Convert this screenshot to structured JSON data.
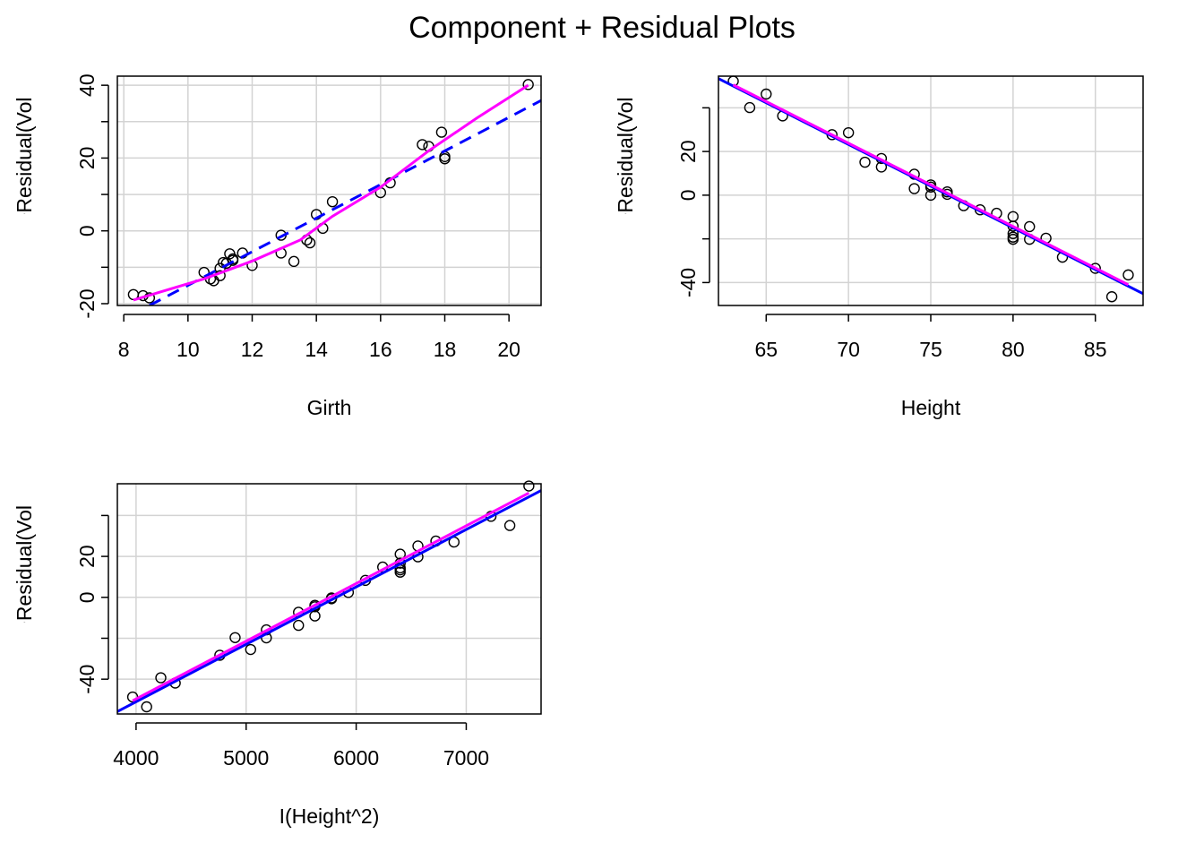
{
  "figure": {
    "title": "Component + Residual Plots"
  },
  "colors": {
    "fit_line": "#0000FF",
    "smooth_line": "#FF00FF",
    "grid": "#D3D3D3",
    "points": "#000000"
  },
  "chart_data": [
    {
      "type": "scatter",
      "xlabel": "Girth",
      "ylabel": "Component+Residual(Volume)",
      "xlim": [
        7.8,
        21.0
      ],
      "ylim": [
        -20.5,
        42.5
      ],
      "xticks": [
        8,
        10,
        12,
        14,
        16,
        18,
        20
      ],
      "yticks": [
        -20,
        -10,
        0,
        10,
        20,
        30,
        40
      ],
      "ytick_labels": [
        "-20",
        "",
        "0",
        "",
        "20",
        "",
        "40"
      ],
      "grid": true,
      "points": [
        [
          8.3,
          -17.5
        ],
        [
          8.6,
          -17.8
        ],
        [
          8.8,
          -18.4
        ],
        [
          10.5,
          -11.4
        ],
        [
          10.7,
          -13.2
        ],
        [
          10.8,
          -13.7
        ],
        [
          11.0,
          -10.3
        ],
        [
          11.0,
          -12.3
        ],
        [
          11.1,
          -8.7
        ],
        [
          11.2,
          -8.9
        ],
        [
          11.3,
          -6.3
        ],
        [
          11.4,
          -7.7
        ],
        [
          11.4,
          -8.1
        ],
        [
          11.7,
          -6.1
        ],
        [
          12.0,
          -9.5
        ],
        [
          12.9,
          -1.2
        ],
        [
          12.9,
          -6.1
        ],
        [
          13.3,
          -8.4
        ],
        [
          13.7,
          -2.5
        ],
        [
          13.8,
          -3.3
        ],
        [
          14.0,
          4.5
        ],
        [
          14.2,
          0.7
        ],
        [
          14.5,
          8.0
        ],
        [
          16.0,
          10.5
        ],
        [
          16.3,
          13.2
        ],
        [
          17.3,
          23.7
        ],
        [
          17.5,
          23.2
        ],
        [
          17.9,
          27.1
        ],
        [
          18.0,
          19.8
        ],
        [
          18.0,
          20.4
        ],
        [
          20.6,
          40.2
        ]
      ],
      "fit_line": {
        "style": "dashed",
        "x": [
          8.8,
          21.0
        ],
        "y": [
          -20.5,
          35.8
        ]
      },
      "smooth_line": {
        "x": [
          8.3,
          10.5,
          12.0,
          13.5,
          14.5,
          16.0,
          17.5,
          19.0,
          20.6
        ],
        "y": [
          -19.0,
          -13.2,
          -8.3,
          -2.5,
          4.0,
          12.0,
          22.0,
          31.0,
          40.0
        ]
      }
    },
    {
      "type": "scatter",
      "xlabel": "Height",
      "ylabel": "Component+Residual(Volume)",
      "xlim": [
        62.1,
        87.9
      ],
      "ylim": [
        -50.5,
        54.5
      ],
      "xticks": [
        65,
        70,
        75,
        80,
        85
      ],
      "yticks": [
        -40,
        -20,
        0,
        20,
        40
      ],
      "ytick_labels": [
        "-40",
        "",
        "0",
        "20",
        ""
      ],
      "grid": true,
      "points": [
        [
          63,
          52.2
        ],
        [
          64,
          40.1
        ],
        [
          65,
          46.3
        ],
        [
          66,
          36.3
        ],
        [
          69,
          27.7
        ],
        [
          70,
          28.6
        ],
        [
          71,
          15.1
        ],
        [
          72,
          16.8
        ],
        [
          72,
          12.9
        ],
        [
          74,
          9.6
        ],
        [
          74,
          3.0
        ],
        [
          75,
          4.7
        ],
        [
          75,
          3.7
        ],
        [
          75,
          0.0
        ],
        [
          76,
          1.5
        ],
        [
          76,
          0.4
        ],
        [
          77,
          -4.8
        ],
        [
          78,
          -6.7
        ],
        [
          79,
          -8.3
        ],
        [
          80,
          -9.8
        ],
        [
          80,
          -14.2
        ],
        [
          80,
          -17.6
        ],
        [
          80,
          -19.2
        ],
        [
          80,
          -20.2
        ],
        [
          81,
          -14.4
        ],
        [
          81,
          -20.2
        ],
        [
          82,
          -19.7
        ],
        [
          83,
          -28.4
        ],
        [
          85,
          -33.5
        ],
        [
          86,
          -46.5
        ],
        [
          87,
          -36.5
        ]
      ],
      "fit_line": {
        "style": "solid",
        "x": [
          62.1,
          87.9
        ],
        "y": [
          53.4,
          -45.1
        ]
      },
      "smooth_line": {
        "x": [
          63,
          87
        ],
        "y": [
          50.5,
          -41.0
        ]
      }
    },
    {
      "type": "scatter",
      "xlabel": "I(Height^2)",
      "ylabel": "Component+Residual(Volume)",
      "xlim": [
        3830,
        7680
      ],
      "ylim": [
        -57.0,
        55.5
      ],
      "xticks": [
        4000,
        5000,
        6000,
        7000
      ],
      "yticks": [
        -40,
        -20,
        0,
        20,
        40
      ],
      "ytick_labels": [
        "-40",
        "",
        "0",
        "20",
        ""
      ],
      "grid": true,
      "points": [
        [
          3969,
          -48.7
        ],
        [
          4096,
          -53.5
        ],
        [
          4225,
          -39.3
        ],
        [
          4356,
          -41.9
        ],
        [
          4761,
          -28.3
        ],
        [
          4900,
          -19.7
        ],
        [
          5041,
          -25.5
        ],
        [
          5184,
          -15.9
        ],
        [
          5184,
          -19.8
        ],
        [
          5476,
          -7.3
        ],
        [
          5476,
          -13.7
        ],
        [
          5625,
          -3.9
        ],
        [
          5625,
          -4.6
        ],
        [
          5625,
          -9.1
        ],
        [
          5776,
          -0.3
        ],
        [
          5776,
          -0.7
        ],
        [
          5929,
          2.4
        ],
        [
          6084,
          8.3
        ],
        [
          6241,
          14.8
        ],
        [
          6400,
          21.1
        ],
        [
          6400,
          16.7
        ],
        [
          6400,
          14.4
        ],
        [
          6400,
          13.4
        ],
        [
          6400,
          12.3
        ],
        [
          6561,
          25.1
        ],
        [
          6561,
          19.8
        ],
        [
          6724,
          27.5
        ],
        [
          6889,
          27.0
        ],
        [
          7225,
          39.6
        ],
        [
          7396,
          35.1
        ],
        [
          7569,
          54.4
        ]
      ],
      "fit_line": {
        "style": "solid",
        "x": [
          3830,
          7680
        ],
        "y": [
          -55.8,
          52.2
        ]
      },
      "smooth_line": {
        "x": [
          3969,
          7569
        ],
        "y": [
          -50.5,
          51.0
        ]
      }
    }
  ]
}
